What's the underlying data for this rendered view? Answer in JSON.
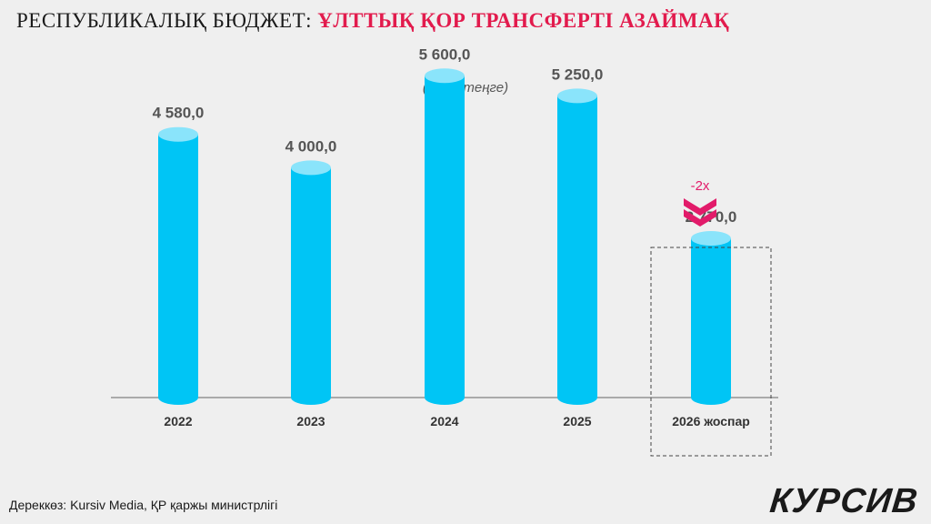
{
  "header": {
    "title_plain": "РЕСПУБЛИКАЛЫҚ БЮДЖЕТ:",
    "title_accent": "ҰЛТТЫҚ ҚОР ТРАНСФЕРТІ АЗАЙМАҚ"
  },
  "chart_data": {
    "type": "bar",
    "unit_label": "(млрд теңге)",
    "categories": [
      "2022",
      "2023",
      "2024",
      "2025",
      "2026 жоспар"
    ],
    "values": [
      4580.0,
      4000.0,
      5600.0,
      5250.0,
      2770.0
    ],
    "value_labels": [
      "4 580,0",
      "4 000,0",
      "5 600,0",
      "5 250,0",
      "2 770,0"
    ],
    "ylim": [
      0,
      6000
    ],
    "highlight_index": 4,
    "annotation": "-2x",
    "colors": {
      "bar": "#00c5f5",
      "bar_top": "#8ae4fb",
      "annotation": "#e21b6a"
    }
  },
  "footer": {
    "source": "Дереккөз: Kursiv Media, ҚР қаржы министрлігі",
    "logo": "КУРСИВ"
  }
}
